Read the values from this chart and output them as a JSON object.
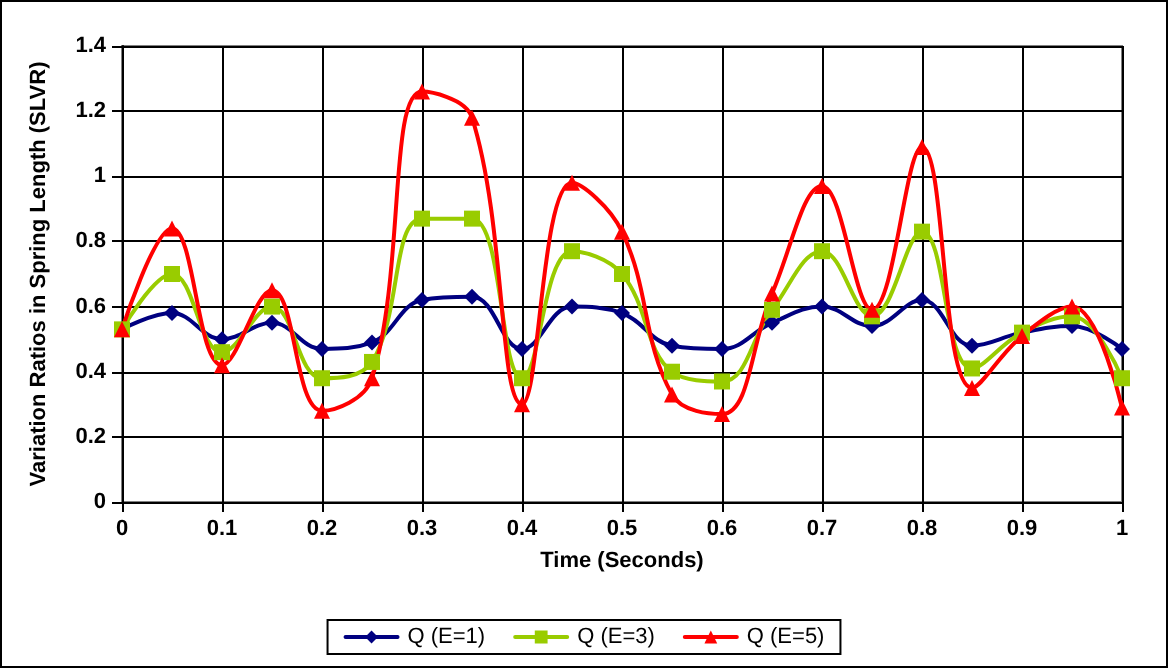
{
  "chart_data": {
    "type": "line",
    "xlabel": "Time (Seconds)",
    "ylabel": "Variation Ratios in Spring Length (SLVR)",
    "x": [
      0,
      0.05,
      0.1,
      0.15,
      0.2,
      0.25,
      0.3,
      0.35,
      0.4,
      0.45,
      0.5,
      0.55,
      0.6,
      0.65,
      0.7,
      0.75,
      0.8,
      0.85,
      0.9,
      0.95,
      1
    ],
    "xlim": [
      0,
      1
    ],
    "xticks": [
      0,
      0.1,
      0.2,
      0.3,
      0.4,
      0.5,
      0.6,
      0.7,
      0.8,
      0.9,
      1
    ],
    "ylim": [
      0,
      1.4
    ],
    "yticks": [
      0,
      0.2,
      0.4,
      0.6,
      0.8,
      1,
      1.2,
      1.4
    ],
    "grid": true,
    "legend": "bottom",
    "series": [
      {
        "name": "Q (E=1)",
        "color": "#000080",
        "marker": "diamond",
        "values": [
          0.53,
          0.58,
          0.5,
          0.55,
          0.47,
          0.49,
          0.62,
          0.63,
          0.47,
          0.6,
          0.58,
          0.48,
          0.47,
          0.55,
          0.6,
          0.54,
          0.62,
          0.48,
          0.52,
          0.54,
          0.47
        ]
      },
      {
        "name": "Q (E=3)",
        "color": "#99cc00",
        "marker": "square",
        "values": [
          0.53,
          0.7,
          0.46,
          0.6,
          0.38,
          0.43,
          0.87,
          0.87,
          0.38,
          0.77,
          0.7,
          0.4,
          0.37,
          0.59,
          0.77,
          0.57,
          0.83,
          0.41,
          0.52,
          0.57,
          0.38
        ]
      },
      {
        "name": "Q (E=5)",
        "color": "#ff0000",
        "marker": "triangle",
        "values": [
          0.53,
          0.84,
          0.42,
          0.65,
          0.28,
          0.38,
          1.26,
          1.18,
          0.3,
          0.98,
          0.83,
          0.33,
          0.27,
          0.64,
          0.97,
          0.59,
          1.09,
          0.35,
          0.51,
          0.6,
          0.29
        ]
      }
    ]
  }
}
